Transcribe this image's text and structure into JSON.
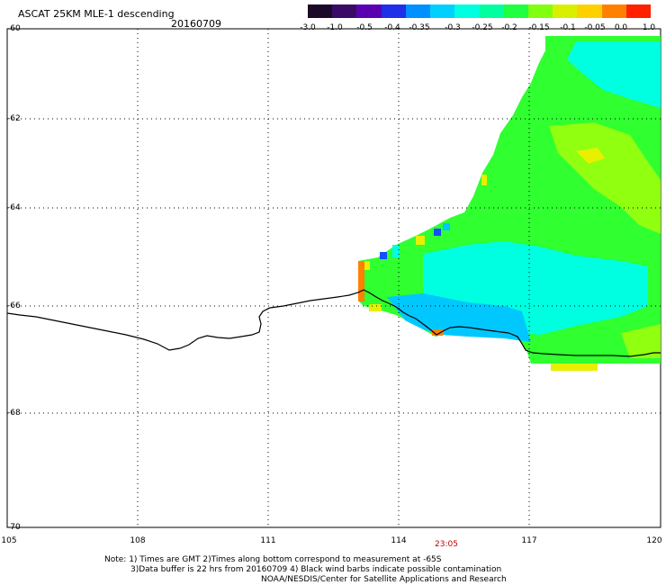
{
  "header": {
    "title": "ASCAT 25KM MLE-1 descending",
    "date": "20160709"
  },
  "colorbar": {
    "labels": [
      "-3.0",
      "-1.0",
      "-0.5",
      "-0.4",
      "-0.35",
      "-0.3",
      "-0.25",
      "-0.2",
      "-0.15",
      "-0.1",
      "-0.05",
      "0.0",
      "1.0"
    ],
    "colors": [
      "#1a0a28",
      "#3b0a66",
      "#5a00b0",
      "#2030e8",
      "#0090ff",
      "#00d0ff",
      "#00ffe0",
      "#00ffa0",
      "#20ff40",
      "#80ff10",
      "#d8f000",
      "#ffd000",
      "#ff8000",
      "#ff2000"
    ]
  },
  "map": {
    "lat_labels": [
      "-60",
      "-62",
      "-64",
      "-66",
      "-68",
      "-70"
    ],
    "lon_labels": [
      "105",
      "108",
      "111",
      "114",
      "117",
      "120"
    ],
    "time_label": "23:05",
    "swath_colors": {
      "cyan": "#00ffe0",
      "green": "#30ff30",
      "lime": "#90ff10",
      "yellow": "#e8f000",
      "orange": "#ff8000",
      "blue": "#1050ff",
      "deepcyan": "#00c8ff"
    }
  },
  "notes": {
    "line1": "Note: 1) Times are GMT 2)Times along bottom correspond to measurement at -65S",
    "line2": "3)Data buffer is 22 hrs from 20160709 4) Black wind barbs indicate possible contamination",
    "line3": "NOAA/NESDIS/Center for Satellite Applications and Research"
  }
}
